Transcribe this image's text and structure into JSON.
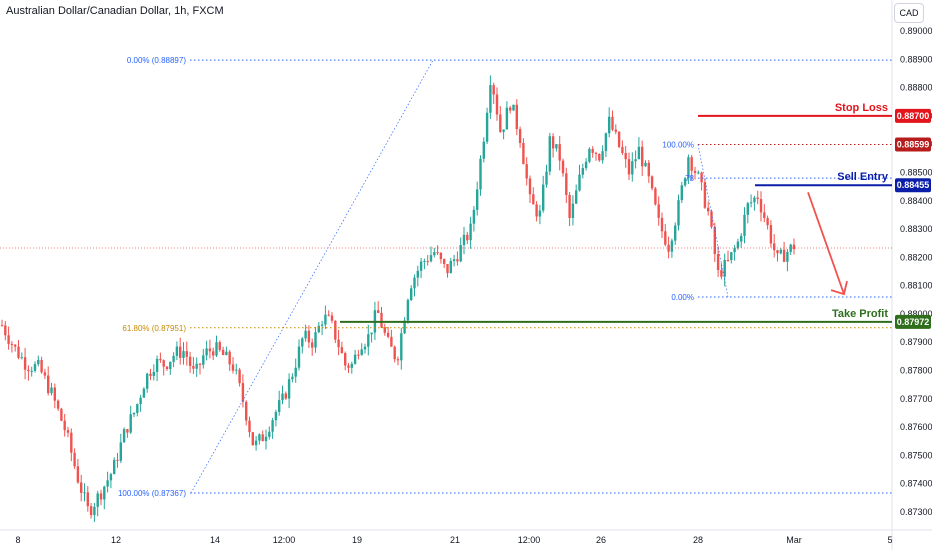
{
  "header": {
    "symbol_title": "Australian Dollar/Canadian Dollar, 1h, FXCM",
    "currency_button": "CAD"
  },
  "colors": {
    "up": "#26a69a",
    "down": "#ef5350",
    "stop": "#e3141b",
    "entry": "#0b1ea8",
    "target": "#2e6e1d",
    "fib": "#2962ff",
    "fib_gold": "#c68a00"
  },
  "chart_data": {
    "type": "candlestick",
    "title": "Australian Dollar/Canadian Dollar, 1h, FXCM",
    "y_ticks": [
      "0.89000",
      "0.88900",
      "0.88800",
      "0.88700",
      "0.88600",
      "0.88500",
      "0.88400",
      "0.88300",
      "0.88200",
      "0.88100",
      "0.88000",
      "0.87900",
      "0.87800",
      "0.87700",
      "0.87600",
      "0.87500",
      "0.87400",
      "0.87300"
    ],
    "ylim": [
      0.8725,
      0.891
    ],
    "x_ticks": [
      "8",
      "12",
      "14",
      "12:00",
      "19",
      "21",
      "12:00",
      "26",
      "28",
      "Mar",
      "5"
    ],
    "close_path": [
      [
        0.8796,
        0
      ],
      [
        0.8788,
        0.5
      ],
      [
        0.8782,
        1
      ],
      [
        0.8781,
        1.5
      ],
      [
        0.8772,
        2
      ],
      [
        0.8758,
        2.6
      ],
      [
        0.8741,
        3.1
      ],
      [
        0.873,
        3.5
      ],
      [
        0.8737,
        4
      ],
      [
        0.8745,
        4.5
      ],
      [
        0.8759,
        5
      ],
      [
        0.8766,
        5.4
      ],
      [
        0.8777,
        5.8
      ],
      [
        0.8783,
        6.2
      ],
      [
        0.8782,
        6.6
      ],
      [
        0.8786,
        7
      ],
      [
        0.8787,
        7.4
      ],
      [
        0.8778,
        7.8
      ],
      [
        0.8786,
        8.2
      ],
      [
        0.8788,
        8.6
      ],
      [
        0.8785,
        9
      ],
      [
        0.8781,
        9.4
      ],
      [
        0.8768,
        9.8
      ],
      [
        0.8753,
        10.2
      ],
      [
        0.8757,
        10.6
      ],
      [
        0.8764,
        11
      ],
      [
        0.877,
        11.4
      ],
      [
        0.878,
        11.8
      ],
      [
        0.8792,
        12.2
      ],
      [
        0.879,
        12.6
      ],
      [
        0.8799,
        13
      ],
      [
        0.8797,
        13.3
      ],
      [
        0.879,
        13.6
      ],
      [
        0.8782,
        13.9
      ],
      [
        0.8782,
        14.2
      ],
      [
        0.879,
        14.5
      ],
      [
        0.8791,
        14.8
      ],
      [
        0.8801,
        15.2
      ],
      [
        0.879,
        15.6
      ],
      [
        0.8784,
        16
      ],
      [
        0.881,
        16.5
      ],
      [
        0.8818,
        17
      ],
      [
        0.8822,
        17.5
      ],
      [
        0.8815,
        18
      ],
      [
        0.8822,
        18.5
      ],
      [
        0.883,
        19
      ],
      [
        0.8862,
        19.5
      ],
      [
        0.8885,
        19.8
      ],
      [
        0.8864,
        20.2
      ],
      [
        0.8875,
        20.6
      ],
      [
        0.8862,
        21
      ],
      [
        0.8839,
        21.4
      ],
      [
        0.8835,
        21.8
      ],
      [
        0.8862,
        22.2
      ],
      [
        0.8855,
        22.6
      ],
      [
        0.8833,
        23
      ],
      [
        0.8848,
        23.4
      ],
      [
        0.886,
        23.8
      ],
      [
        0.8856,
        24.2
      ],
      [
        0.8868,
        24.6
      ],
      [
        0.8859,
        25
      ],
      [
        0.885,
        25.4
      ],
      [
        0.8858,
        25.8
      ],
      [
        0.8847,
        26.2
      ],
      [
        0.8832,
        26.6
      ],
      [
        0.8824,
        27
      ],
      [
        0.8838,
        27.4
      ],
      [
        0.8856,
        27.8
      ],
      [
        0.8848,
        28.2
      ],
      [
        0.8836,
        28.6
      ],
      [
        0.8814,
        29
      ],
      [
        0.8818,
        29.4
      ],
      [
        0.8825,
        29.8
      ],
      [
        0.8838,
        30.2
      ],
      [
        0.8842,
        30.6
      ],
      [
        0.8831,
        31
      ],
      [
        0.8819,
        31.4
      ],
      [
        0.8822,
        31.8
      ],
      [
        0.8825,
        32.2
      ]
    ],
    "fibonacci_main": [
      {
        "label": "0.00% (0.88897)",
        "price": 0.88897
      },
      {
        "label": "61.80% (0.87951)",
        "price": 0.87951
      },
      {
        "label": "100.00% (0.87367)",
        "price": 0.87367
      }
    ],
    "fibonacci_small": [
      {
        "label": "100.00%",
        "price": 0.88599
      },
      {
        "label": "78",
        "price": 0.8848
      },
      {
        "label": "0.00%",
        "price": 0.8806
      }
    ],
    "levels": [
      {
        "name": "Stop Loss",
        "price_label": "0.88700",
        "price": 0.887,
        "color": "#e3141b"
      },
      {
        "name": "",
        "price_label": "0.88599",
        "price": 0.88599,
        "color": "#b71c1c"
      },
      {
        "name": "Sell Entry",
        "price_label": "0.88455",
        "price": 0.88455,
        "color": "#0b1ea8"
      },
      {
        "name": "Take Profit",
        "price_label": "0.87972",
        "price": 0.87972,
        "color": "#2e6e1d"
      }
    ],
    "current_price": 0.88233,
    "arrow": {
      "from_price": 0.8843,
      "to_price": 0.8807
    }
  },
  "annotations": {
    "stop_loss": "Stop Loss",
    "sell_entry": "Sell Entry",
    "take_profit": "Take Profit"
  }
}
